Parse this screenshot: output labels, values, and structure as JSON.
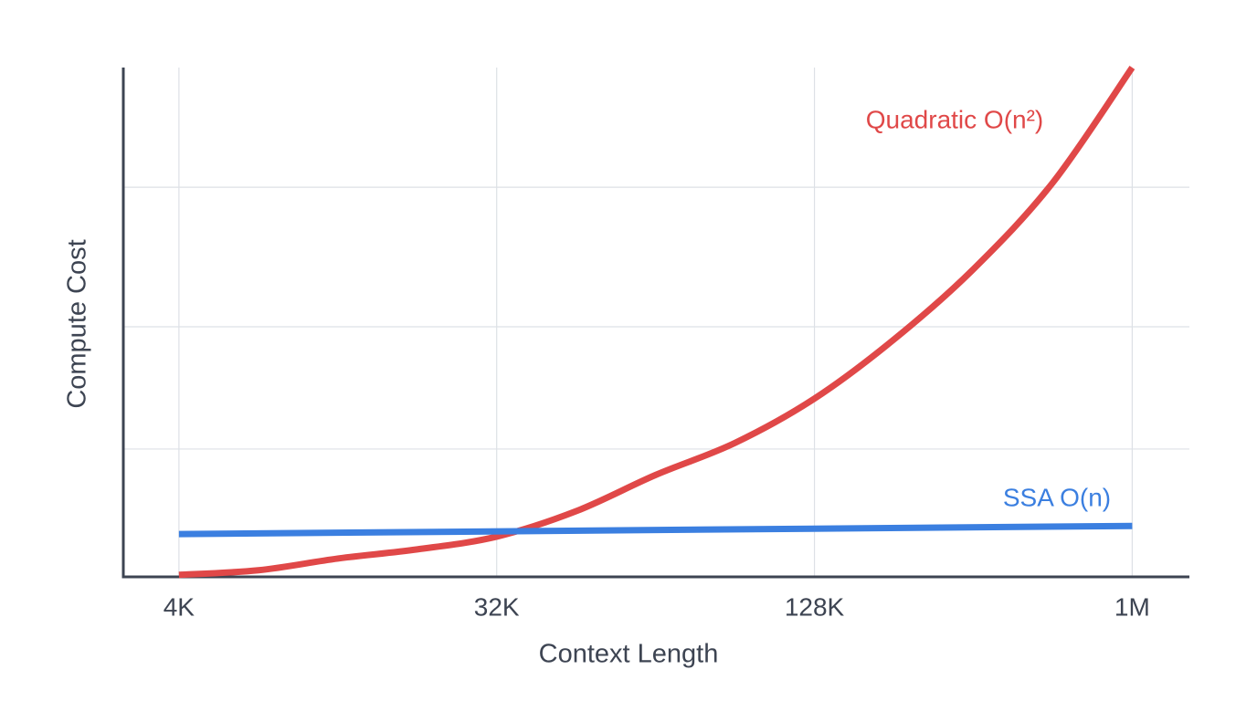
{
  "chart_data": {
    "type": "line",
    "x_label": "Context Length",
    "y_label": "Compute Cost",
    "xlim": [
      -0.175,
      3.18
    ],
    "ylim": [
      0,
      100
    ],
    "xticks": [
      {
        "value": 0,
        "label": "4K"
      },
      {
        "value": 1,
        "label": "32K"
      },
      {
        "value": 2,
        "label": "128K"
      },
      {
        "value": 3,
        "label": "1M"
      }
    ],
    "ygrid": [
      25.1,
      49.1,
      76.5
    ],
    "grid": true,
    "series": [
      {
        "name": "Quadratic O(n²)",
        "color": "#e04848",
        "x": [
          0,
          0.25,
          0.5,
          0.75,
          1,
          1.25,
          1.5,
          1.75,
          2,
          2.25,
          2.5,
          2.75,
          3
        ],
        "values": [
          0.4,
          1.3,
          3.6,
          5.4,
          7.9,
          12.9,
          20,
          26.3,
          35,
          46.6,
          60.4,
          77.4,
          100
        ]
      },
      {
        "name": "SSA O(n)",
        "color": "#3b7fe0",
        "x": [
          0,
          3
        ],
        "values": [
          8.4,
          10.0
        ]
      }
    ]
  }
}
